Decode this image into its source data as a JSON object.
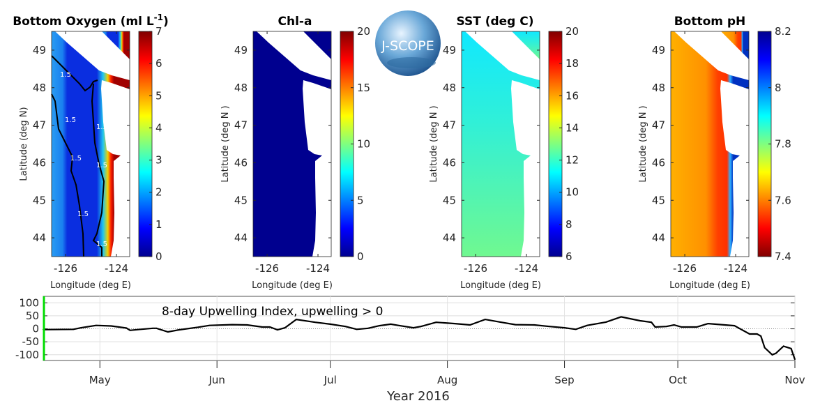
{
  "logo": {
    "text": "J-SCOPE"
  },
  "chart_data": [
    {
      "type": "heatmap",
      "title": "Bottom Oxygen (ml L",
      "title_sup": "-1",
      "title_end": ")",
      "xlabel": "Longitude (deg E)",
      "ylabel": "Latitude (deg N)",
      "xlim": [
        -126.55,
        -123.48
      ],
      "ylim": [
        43.5,
        49.5
      ],
      "xticks": [
        -126,
        -124
      ],
      "xtick_labels": [
        "-126",
        "-124"
      ],
      "yticks": [
        44,
        45,
        46,
        47,
        48,
        49
      ],
      "ytick_labels": [
        "44",
        "45",
        "46",
        "47",
        "48",
        "49"
      ],
      "colorbar": {
        "colormap": "jet",
        "range": [
          0,
          7
        ],
        "ticks": [
          "0",
          "1",
          "2",
          "3",
          "4",
          "5",
          "6",
          "7"
        ]
      },
      "contour_label": "1.5"
    },
    {
      "type": "heatmap",
      "title": "Chl-a",
      "xlabel": "Longitude (deg E)",
      "ylabel": "Latitude (deg N )",
      "xlim": [
        -126.55,
        -123.48
      ],
      "ylim": [
        43.5,
        49.5
      ],
      "xticks": [
        -126,
        -124
      ],
      "xtick_labels": [
        "-126",
        "-124"
      ],
      "yticks": [
        44,
        45,
        46,
        47,
        48,
        49
      ],
      "ytick_labels": [
        "44",
        "45",
        "46",
        "47",
        "48",
        "49"
      ],
      "colorbar": {
        "colormap": "jet",
        "range": [
          0,
          20
        ],
        "ticks": [
          "0",
          "5",
          "10",
          "15",
          "20"
        ]
      }
    },
    {
      "type": "heatmap",
      "title": "SST (deg C)",
      "xlabel": "Longitude (deg E)",
      "ylabel": "Latitude (deg N )",
      "xlim": [
        -126.55,
        -123.48
      ],
      "ylim": [
        43.5,
        49.5
      ],
      "xticks": [
        -126,
        -124
      ],
      "xtick_labels": [
        "-126",
        "-124"
      ],
      "yticks": [
        44,
        45,
        46,
        47,
        48,
        49
      ],
      "ytick_labels": [
        "44",
        "45",
        "46",
        "47",
        "48",
        "49"
      ],
      "colorbar": {
        "colormap": "jet",
        "range": [
          6,
          20
        ],
        "ticks": [
          "6",
          "8",
          "10",
          "12",
          "14",
          "16",
          "18",
          "20"
        ]
      }
    },
    {
      "type": "heatmap",
      "title": "Bottom pH",
      "xlabel": "Longitude (deg E)",
      "ylabel": "Latitude (deg N )",
      "xlim": [
        -126.55,
        -123.48
      ],
      "ylim": [
        43.5,
        49.5
      ],
      "xticks": [
        -126,
        -124
      ],
      "xtick_labels": [
        "-126",
        "-124"
      ],
      "yticks": [
        44,
        45,
        46,
        47,
        48,
        49
      ],
      "ytick_labels": [
        "44",
        "45",
        "46",
        "47",
        "48",
        "49"
      ],
      "colorbar": {
        "colormap": "jet reversed",
        "range": [
          7.4,
          8.2
        ],
        "ticks": [
          "7.4",
          "7.6",
          "7.8",
          "8",
          "8.2"
        ]
      }
    },
    {
      "type": "line",
      "title": "8-day Upwelling Index, upwelling > 0",
      "xlabel": "Year 2016",
      "ylabel": "",
      "xlim": [
        "2016-04-16",
        "2016-11-01"
      ],
      "ylim": [
        -122,
        125
      ],
      "xticks": [
        "2016-05-01",
        "2016-06-01",
        "2016-07-01",
        "2016-08-01",
        "2016-09-01",
        "2016-10-01",
        "2016-11-01"
      ],
      "xtick_labels": [
        "May",
        "Jun",
        "Jul",
        "Aug",
        "Sep",
        "Oct",
        "Nov"
      ],
      "yticks": [
        100,
        50,
        0,
        -50,
        -100
      ],
      "ytick_labels": [
        "100",
        "50",
        "0",
        "-50",
        "-100"
      ],
      "grid": true,
      "colors": {
        "line": "#000000",
        "current_marker": "#00dd00"
      },
      "series": [
        {
          "x": [
            "2016-04-16",
            "2016-04-24",
            "2016-04-26",
            "2016-04-30",
            "2016-05-04",
            "2016-05-08",
            "2016-05-09",
            "2016-05-11",
            "2016-05-15",
            "2016-05-16",
            "2016-05-19",
            "2016-05-22",
            "2016-05-27",
            "2016-05-30",
            "2016-06-05",
            "2016-06-09",
            "2016-06-13",
            "2016-06-15",
            "2016-06-17",
            "2016-06-19",
            "2016-06-22",
            "2016-06-27",
            "2016-07-01",
            "2016-07-05",
            "2016-07-08",
            "2016-07-11",
            "2016-07-14",
            "2016-07-17",
            "2016-07-19",
            "2016-07-23",
            "2016-07-25",
            "2016-07-29",
            "2016-08-03",
            "2016-08-07",
            "2016-08-11",
            "2016-08-15",
            "2016-08-19",
            "2016-08-24",
            "2016-08-28",
            "2016-09-01",
            "2016-09-04",
            "2016-09-07",
            "2016-09-12",
            "2016-09-16",
            "2016-09-21",
            "2016-09-24",
            "2016-09-25",
            "2016-09-28",
            "2016-09-30",
            "2016-10-02",
            "2016-10-06",
            "2016-10-09",
            "2016-10-16",
            "2016-10-17",
            "2016-10-20",
            "2016-10-22",
            "2016-10-23",
            "2016-10-24",
            "2016-10-26",
            "2016-10-27",
            "2016-10-29",
            "2016-10-31",
            "2016-11-01"
          ],
          "y": [
            -3,
            -2,
            4,
            13,
            11,
            3,
            -6,
            -3,
            2,
            2,
            -12,
            -4,
            6,
            13,
            16,
            15,
            7,
            7,
            -4,
            4,
            36,
            25,
            18,
            9,
            -2,
            2,
            12,
            18,
            13,
            4,
            9,
            25,
            20,
            15,
            36,
            26,
            16,
            15,
            9,
            4,
            -2,
            13,
            26,
            46,
            31,
            25,
            7,
            9,
            15,
            7,
            7,
            20,
            12,
            4,
            -20,
            -20,
            -28,
            -73,
            -100,
            -94,
            -67,
            -76,
            -118
          ]
        }
      ]
    }
  ]
}
